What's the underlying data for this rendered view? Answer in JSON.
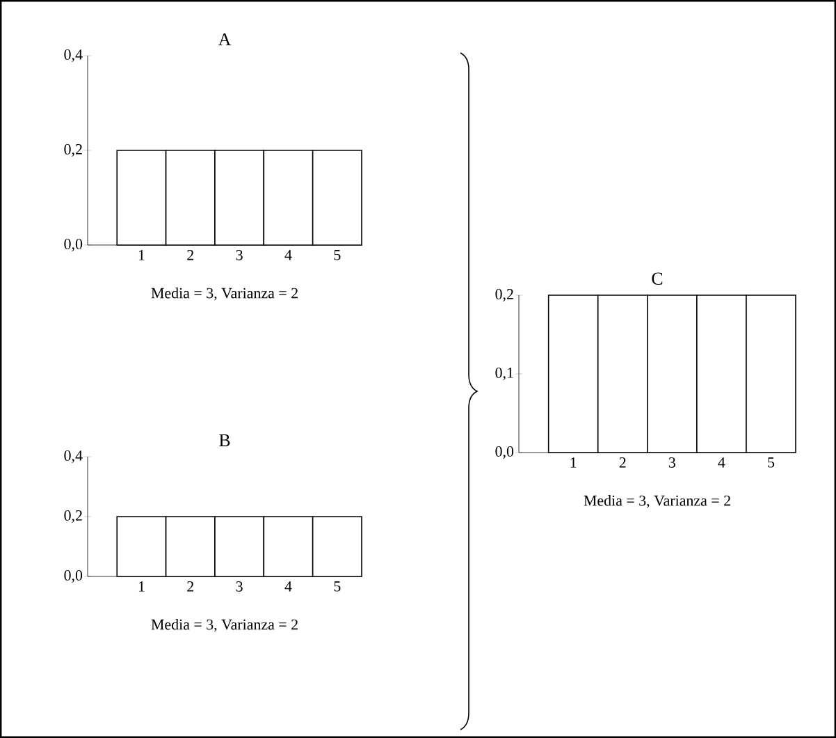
{
  "chart_data": [
    {
      "type": "histogram",
      "title": "A",
      "bins": [
        0.5,
        1.5,
        2.5,
        3.5,
        4.5,
        5.5
      ],
      "values": [
        0.2,
        0.2,
        0.2,
        0.2,
        0.2
      ],
      "color": "#ffffff",
      "xlim": [
        -0.1,
        5.5
      ],
      "ylim": [
        0,
        0.4
      ],
      "xticks": [
        1,
        2,
        3,
        4,
        5
      ],
      "yticks": [
        {
          "value": 0,
          "label": "0,0"
        },
        {
          "value": 0.2,
          "label": "0,2"
        },
        {
          "value": 0.4,
          "label": "0,4"
        }
      ],
      "annotations": [
        "Media = 3,    Varianza = 2"
      ]
    },
    {
      "type": "histogram",
      "title": "B",
      "bins": [
        0.5,
        1.5,
        2.5,
        3.5,
        4.5,
        5.5
      ],
      "values": [
        0.2,
        0.2,
        0.2,
        0.2,
        0.2
      ],
      "color": "#ffffff",
      "xlim": [
        -0.1,
        5.5
      ],
      "ylim": [
        0,
        0.4
      ],
      "xticks": [
        1,
        2,
        3,
        4,
        5
      ],
      "yticks": [
        {
          "value": 0,
          "label": "0,0"
        },
        {
          "value": 0.2,
          "label": "0,2"
        },
        {
          "value": 0.4,
          "label": "0,4"
        }
      ],
      "annotations": [
        "Media = 3,    Varianza = 2"
      ]
    },
    {
      "type": "histogram",
      "title": "C",
      "bins": [
        0.5,
        1.5,
        2.5,
        3.5,
        4.5,
        5.5
      ],
      "values": [
        0.2,
        0.2,
        0.2,
        0.2,
        0.2
      ],
      "color": "#ffffff",
      "xlim": [
        -0.1,
        5.5
      ],
      "ylim": [
        0,
        0.2
      ],
      "xticks": [
        1,
        2,
        3,
        4,
        5
      ],
      "yticks": [
        {
          "value": 0,
          "label": "0,0"
        },
        {
          "value": 0.1,
          "label": "0,1"
        },
        {
          "value": 0.2,
          "label": "0,2"
        }
      ],
      "annotations": [
        "Media = 3,    Varianza = 2"
      ]
    }
  ]
}
